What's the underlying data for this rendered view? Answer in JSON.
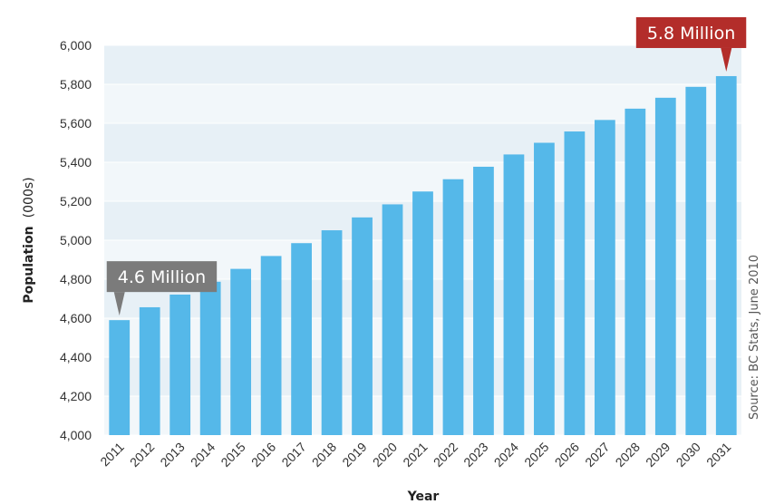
{
  "chart_data": {
    "type": "bar",
    "title": "",
    "xlabel": "Year",
    "ylabel_bold": "Population",
    "ylabel_unit": "(000s)",
    "ylim": [
      4000,
      6000
    ],
    "yticks": [
      4000,
      4200,
      4400,
      4600,
      4800,
      5000,
      5200,
      5400,
      5600,
      5800,
      6000
    ],
    "ytick_labels": [
      "4,000",
      "4,200",
      "4,400",
      "4,600",
      "4,800",
      "5,000",
      "5,200",
      "5,400",
      "5,600",
      "5,800",
      "6,000"
    ],
    "categories": [
      "2011",
      "2012",
      "2013",
      "2014",
      "2015",
      "2016",
      "2017",
      "2018",
      "2019",
      "2020",
      "2021",
      "2022",
      "2023",
      "2024",
      "2025",
      "2026",
      "2027",
      "2028",
      "2029",
      "2030",
      "2031"
    ],
    "values": [
      4590,
      4656,
      4721,
      4787,
      4853,
      4919,
      4985,
      5051,
      5117,
      5184,
      5250,
      5313,
      5377,
      5440,
      5500,
      5558,
      5617,
      5675,
      5731,
      5787,
      5842
    ],
    "grid": true,
    "annotations": [
      {
        "text": "4.6 Million",
        "category": "2011",
        "color": "#7b7b7b"
      },
      {
        "text": "5.8 Million",
        "category": "2031",
        "color": "#b32d2a"
      }
    ],
    "source": "Source: BC Stats, June 2010"
  },
  "colors": {
    "bar": "#55b8e9",
    "plot_bg_dark": "#e7f0f6",
    "plot_bg_light": "#f2f7fa",
    "grid": "#ffffff"
  }
}
